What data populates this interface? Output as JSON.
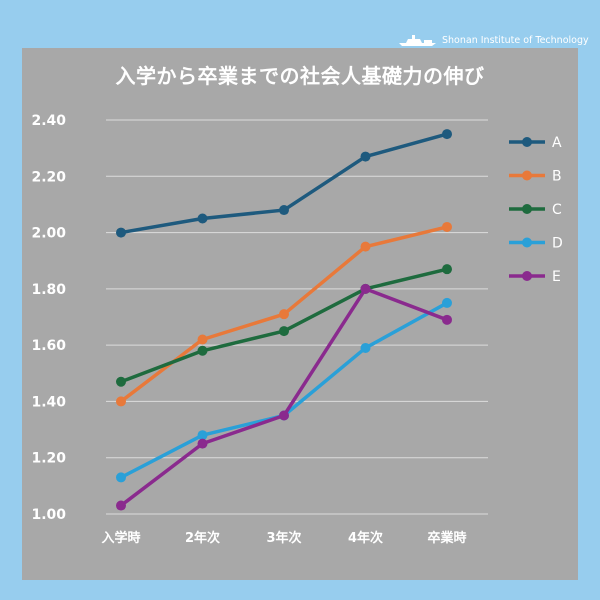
{
  "brand": {
    "text": "Shonan Institute of Technology"
  },
  "chart_data": {
    "type": "line",
    "title": "入学から卒業までの社会人基礎力の伸び",
    "xlabel": "",
    "ylabel": "",
    "categories": [
      "入学時",
      "2年次",
      "3年次",
      "4年次",
      "卒業時"
    ],
    "ylim": [
      1.0,
      2.4
    ],
    "yticks": [
      "1.00",
      "1.20",
      "1.40",
      "1.60",
      "1.80",
      "2.00",
      "2.20",
      "2.40"
    ],
    "grid": true,
    "legend_position": "right",
    "series": [
      {
        "name": "A",
        "color": "#1e5a7e",
        "values": [
          2.0,
          2.05,
          2.08,
          2.27,
          2.35
        ]
      },
      {
        "name": "B",
        "color": "#e8793a",
        "values": [
          1.4,
          1.62,
          1.71,
          1.95,
          2.02
        ]
      },
      {
        "name": "C",
        "color": "#1e6b3e",
        "values": [
          1.47,
          1.58,
          1.65,
          1.8,
          1.87
        ]
      },
      {
        "name": "D",
        "color": "#2aa0d8",
        "values": [
          1.13,
          1.28,
          1.35,
          1.59,
          1.75
        ]
      },
      {
        "name": "E",
        "color": "#8a2a8e",
        "values": [
          1.03,
          1.25,
          1.35,
          1.8,
          1.69
        ]
      }
    ]
  }
}
